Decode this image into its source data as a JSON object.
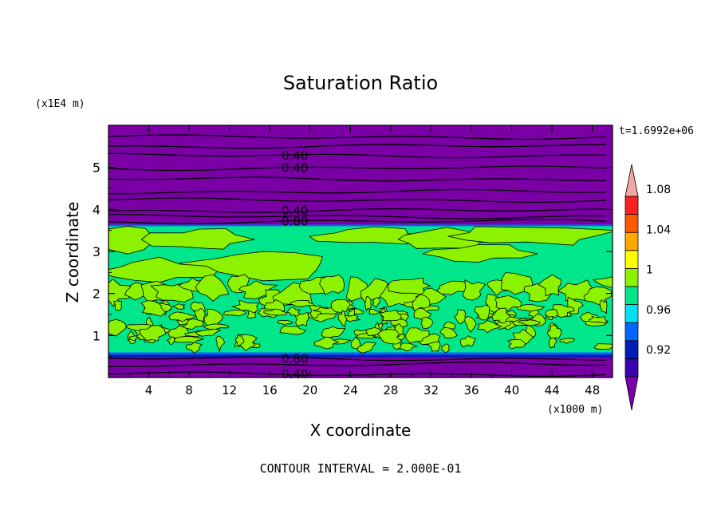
{
  "chart_data": {
    "type": "contour",
    "title": "Saturation Ratio",
    "xlabel": "X coordinate",
    "ylabel": "Z coordinate",
    "x_unit": "(x1000 m)",
    "y_unit": "(x1E4 m)",
    "time_label": "t=1.6992e+06",
    "contour_interval_text": "CONTOUR INTERVAL = 2.000E-01",
    "xlim": [
      0,
      50
    ],
    "ylim": [
      0,
      6
    ],
    "x_ticks": [
      "4",
      "8",
      "12",
      "16",
      "20",
      "24",
      "28",
      "32",
      "36",
      "40",
      "44",
      "48"
    ],
    "y_ticks": [
      "1",
      "2",
      "3",
      "4",
      "5"
    ],
    "colorbar": {
      "levels": [
        0.92,
        0.94,
        0.96,
        0.98,
        1.0,
        1.02,
        1.04,
        1.06,
        1.08,
        1.1
      ],
      "tick_labels": [
        "0.92",
        "0.96",
        "1",
        "1.04",
        "1.08"
      ],
      "colors": [
        "#7a00a6",
        "#3d00b0",
        "#001cb8",
        "#0066ff",
        "#00e0f0",
        "#00e68a",
        "#8cf200",
        "#ffff00",
        "#ffa800",
        "#ff5a00",
        "#ff2020",
        "#f2a6a6"
      ]
    },
    "contour_labels": [
      {
        "text": "0.40",
        "x": 18.5,
        "y": 5.28
      },
      {
        "text": "0.40",
        "x": 18.5,
        "y": 4.98
      },
      {
        "text": "0.40",
        "x": 18.5,
        "y": 3.97
      },
      {
        "text": "0.80",
        "x": 18.5,
        "y": 3.71
      },
      {
        "text": "0.80",
        "x": 18.5,
        "y": 0.45
      },
      {
        "text": "0.40",
        "x": 18.5,
        "y": 0.08
      }
    ],
    "bands": [
      {
        "z0": 0.0,
        "z1": 0.58,
        "value": "below 0.92"
      },
      {
        "z0": 0.58,
        "z1": 3.6,
        "value": "0.98-1.02"
      },
      {
        "z0": 3.6,
        "z1": 6.0,
        "value": "below 0.92"
      }
    ]
  }
}
